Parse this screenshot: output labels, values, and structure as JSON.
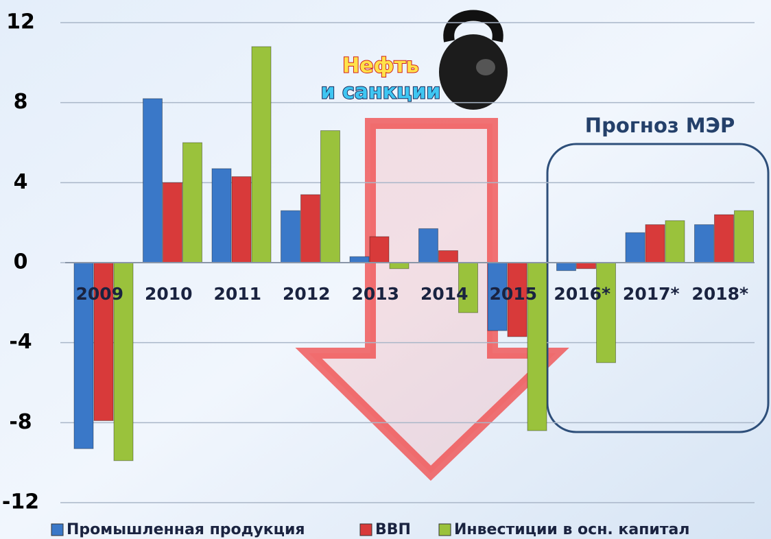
{
  "chart_data": {
    "type": "bar",
    "categories": [
      "2009",
      "2010",
      "2011",
      "2012",
      "2013",
      "2014",
      "2015",
      "2016*",
      "2017*",
      "2018*"
    ],
    "series": [
      {
        "name": "Промышленная продукция",
        "color": "#3a78c8",
        "values": [
          -9.3,
          8.2,
          4.7,
          2.6,
          0.3,
          1.7,
          -3.4,
          -0.4,
          1.5,
          1.9
        ]
      },
      {
        "name": "ВВП",
        "color": "#d83a3a",
        "values": [
          -7.9,
          4.0,
          4.3,
          3.4,
          1.3,
          0.6,
          -3.7,
          -0.3,
          1.9,
          2.4
        ]
      },
      {
        "name": "Инвестиции в осн. капитал",
        "color": "#9ac23c",
        "values": [
          -9.9,
          6.0,
          10.8,
          6.6,
          -0.3,
          -2.5,
          -8.4,
          -5.0,
          2.1,
          2.6
        ]
      }
    ],
    "ylim": [
      -12,
      12
    ],
    "yticks": [
      12,
      8,
      4,
      0,
      -4,
      -8,
      -12
    ],
    "grid": true,
    "annotations": [
      "Нефть",
      "и санкции",
      "Прогноз МЭР"
    ]
  }
}
